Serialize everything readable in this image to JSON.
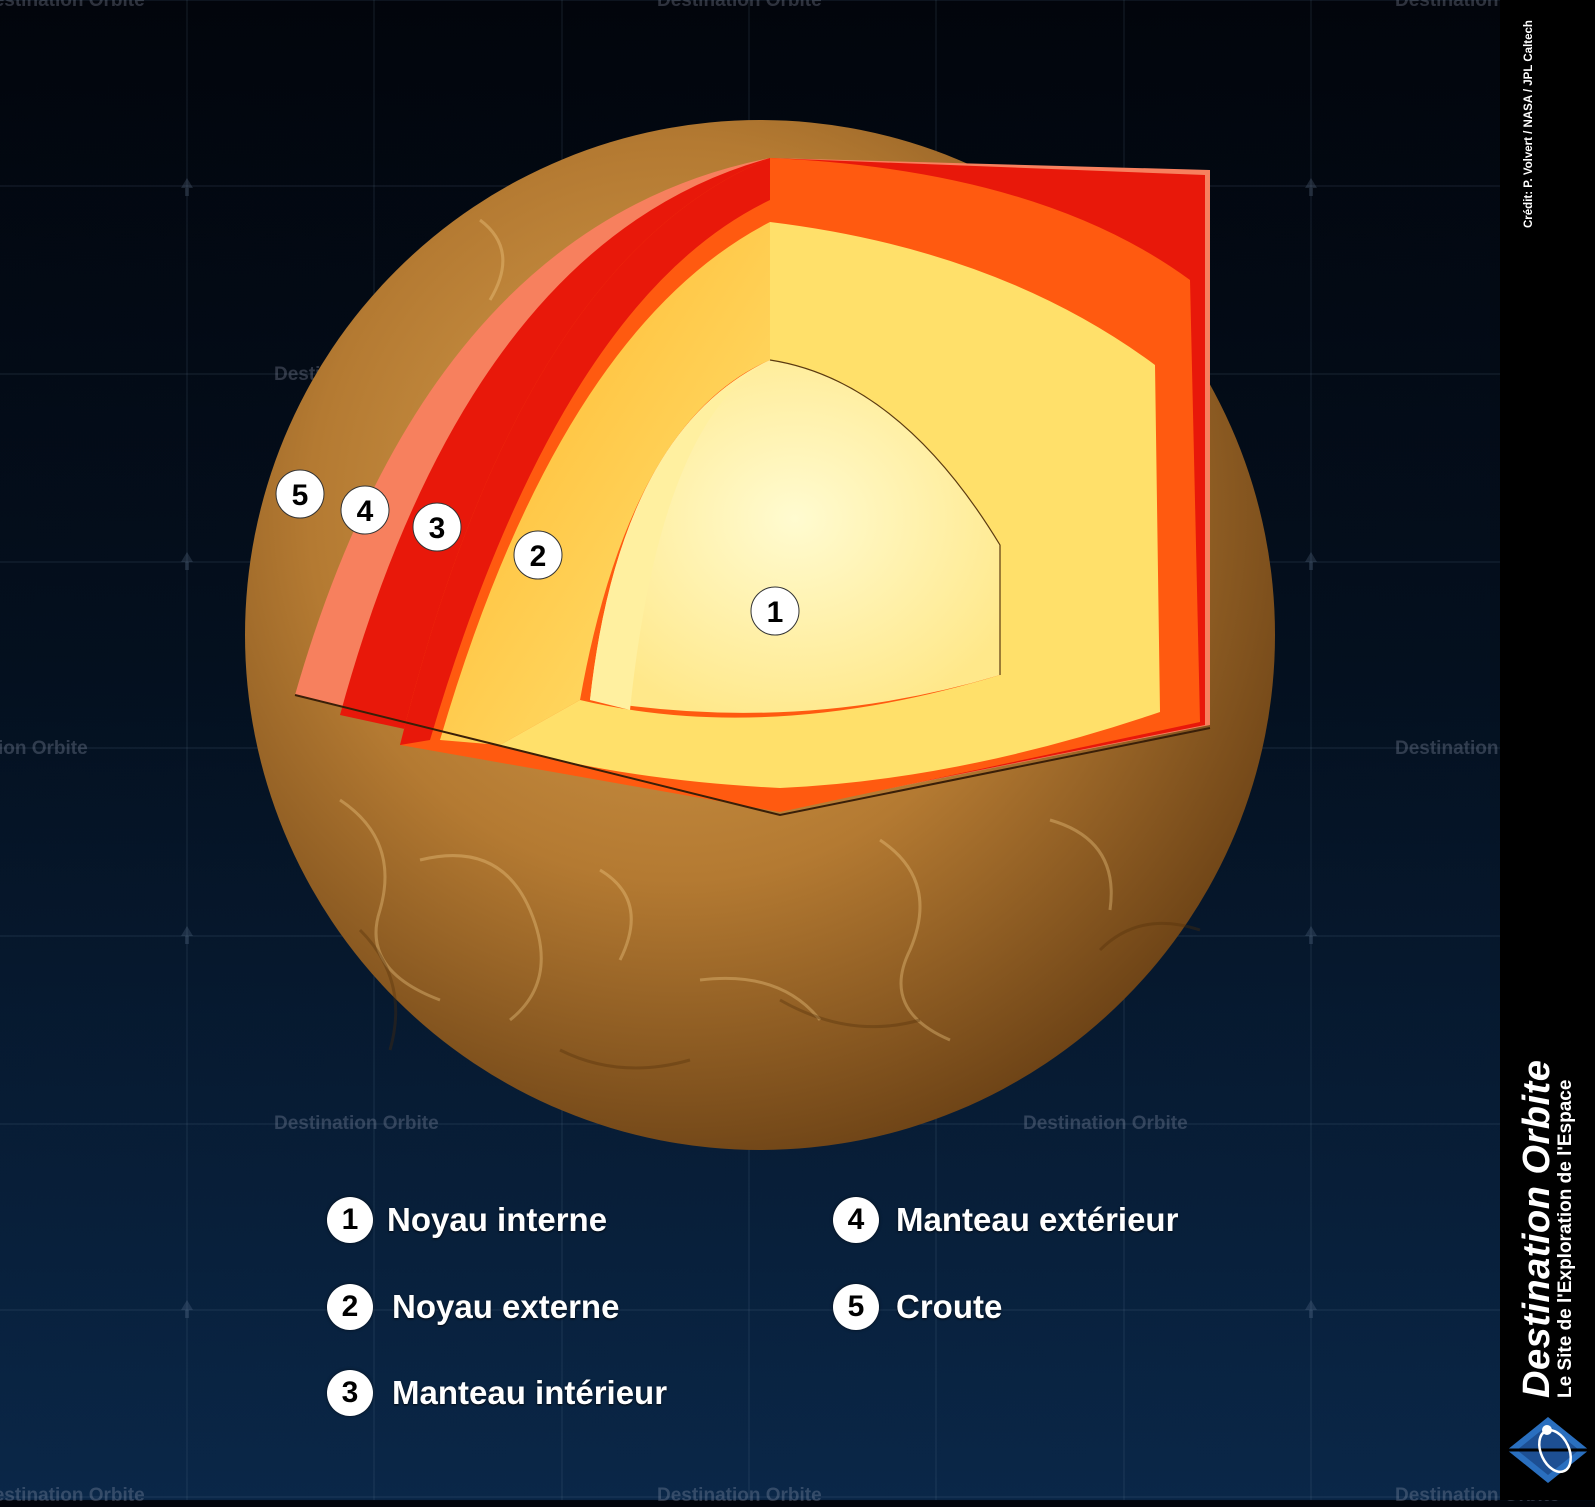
{
  "watermark": "Destination Orbite",
  "credit": "Crédit: P. Volvert / NASA / JPL Caltech",
  "brand": {
    "title": "Destination Orbite",
    "subtitle": "Le Site de l'Exploration de l'Espace"
  },
  "markers": [
    "1",
    "2",
    "3",
    "4",
    "5"
  ],
  "legend": [
    {
      "num": "1",
      "label": "Noyau interne"
    },
    {
      "num": "2",
      "label": "Noyau externe"
    },
    {
      "num": "3",
      "label": "Manteau intérieur"
    },
    {
      "num": "4",
      "label": "Manteau extérieur"
    },
    {
      "num": "5",
      "label": "Croute"
    }
  ],
  "colors": {
    "inner_core": "#fff3a0",
    "outer_core": "#ffd857",
    "inner_mantle": "#ff5a10",
    "outer_mantle": "#e8180a",
    "crust": "#f7805e",
    "surface": "#b87a2e"
  }
}
